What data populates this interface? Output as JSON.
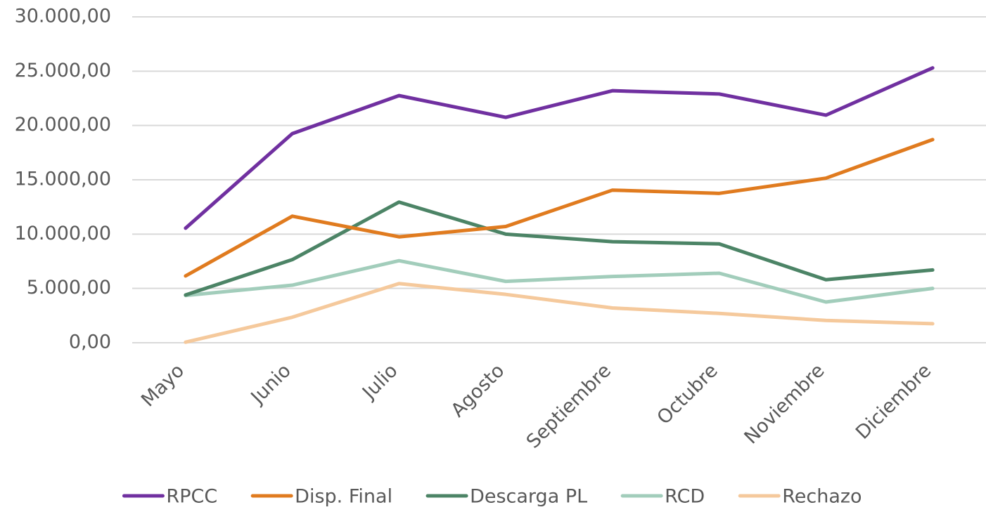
{
  "chart_data": {
    "type": "line",
    "categories": [
      "Mayo",
      "Junio",
      "Julio",
      "Agosto",
      "Septiembre",
      "Octubre",
      "Noviembre",
      "Diciembre"
    ],
    "series": [
      {
        "name": "RPCC",
        "color": "#7030a0",
        "values": [
          10550,
          19250,
          22750,
          20750,
          23200,
          22900,
          20950,
          25300
        ]
      },
      {
        "name": "Disp. Final",
        "color": "#e07b1f",
        "values": [
          6150,
          11650,
          9750,
          10700,
          14050,
          13750,
          15150,
          18700
        ]
      },
      {
        "name": "Descarga PL",
        "color": "#4c8466",
        "values": [
          4400,
          7650,
          12950,
          10000,
          9300,
          9100,
          5800,
          6700
        ]
      },
      {
        "name": "RCD",
        "color": "#a2cdbb",
        "values": [
          4350,
          5300,
          7550,
          5650,
          6100,
          6400,
          3750,
          5000
        ]
      },
      {
        "name": "Rechazo",
        "color": "#f5c99c",
        "values": [
          50,
          2350,
          5450,
          4450,
          3200,
          2700,
          2050,
          1750
        ]
      }
    ],
    "ylim": [
      0,
      30000
    ],
    "yticks": [
      {
        "value": 0,
        "label": "0,00"
      },
      {
        "value": 5000,
        "label": "5.000,00"
      },
      {
        "value": 10000,
        "label": "10.000,00"
      },
      {
        "value": 15000,
        "label": "15.000,00"
      },
      {
        "value": 20000,
        "label": "20.000,00"
      },
      {
        "value": 25000,
        "label": "25.000,00"
      },
      {
        "value": 30000,
        "label": "30.000,00"
      }
    ],
    "grid": true,
    "legend": "bottom"
  }
}
